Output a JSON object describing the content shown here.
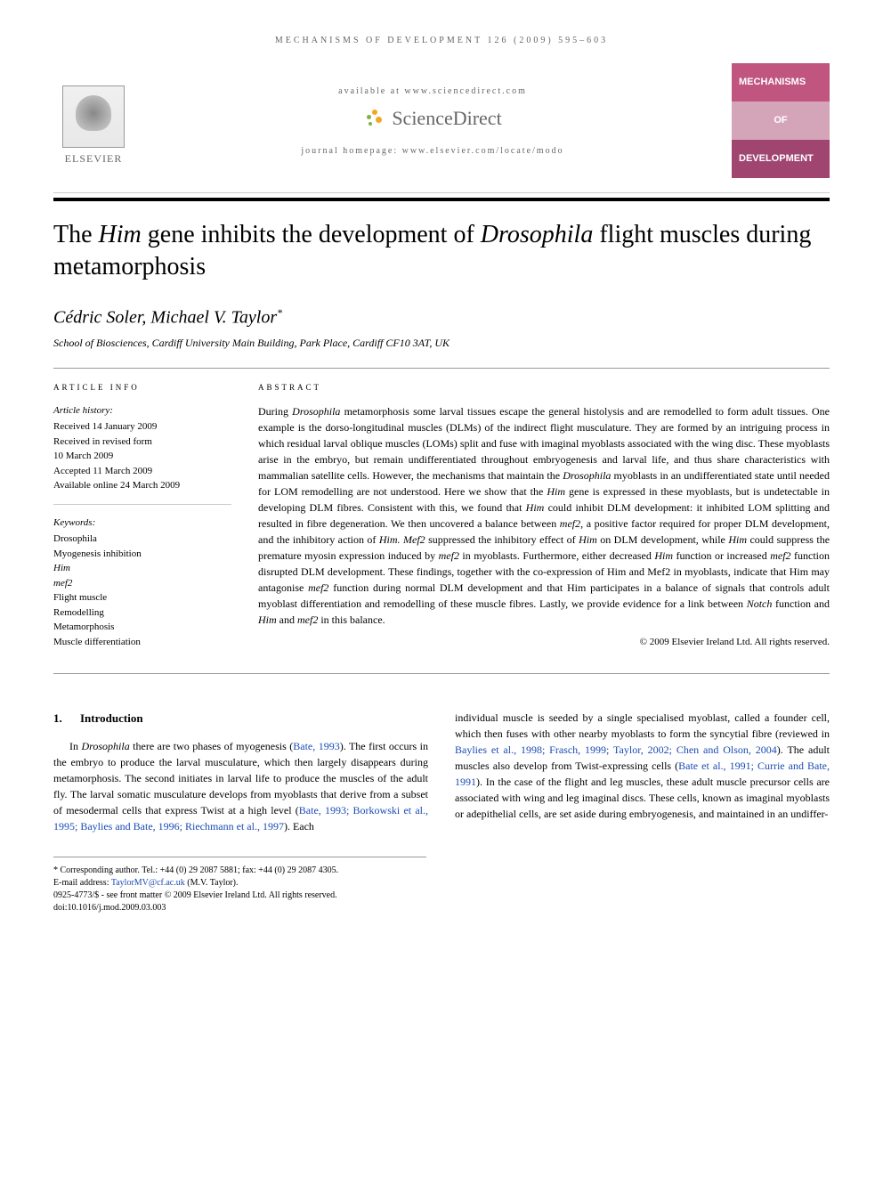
{
  "running_header": "MECHANISMS OF DEVELOPMENT 126 (2009) 595–603",
  "publisher": {
    "name": "ELSEVIER",
    "available_text": "available at www.sciencedirect.com",
    "sciencedirect_text": "ScienceDirect",
    "homepage_text": "journal homepage: www.elsevier.com/locate/modo",
    "sd_colors": {
      "orange": "#f5a623",
      "green": "#7cb342"
    }
  },
  "journal_logo": {
    "line1": "MECHANISMS",
    "line2": "OF",
    "line3": "DEVELOPMENT",
    "colors": {
      "bar1": "#c05580",
      "bar2": "#d4a5b8",
      "bar3": "#a04570"
    }
  },
  "title": {
    "pre": "The ",
    "him": "Him",
    "mid": " gene inhibits the development of ",
    "drosophila": "Drosophila",
    "post": " flight muscles during metamorphosis"
  },
  "authors": "Cédric Soler, Michael V. Taylor",
  "corresponding_mark": "*",
  "affiliation": "School of Biosciences, Cardiff University Main Building, Park Place, Cardiff CF10 3AT, UK",
  "article_info": {
    "heading": "ARTICLE INFO",
    "history_label": "Article history:",
    "history": [
      "Received 14 January 2009",
      "Received in revised form",
      "10 March 2009",
      "Accepted 11 March 2009",
      "Available online 24 March 2009"
    ],
    "keywords_label": "Keywords:",
    "keywords": [
      "Drosophila",
      "Myogenesis inhibition",
      "Him",
      "mef2",
      "Flight muscle",
      "Remodelling",
      "Metamorphosis",
      "Muscle differentiation"
    ]
  },
  "abstract": {
    "heading": "ABSTRACT",
    "text_parts": [
      {
        "t": "During ",
        "i": false
      },
      {
        "t": "Drosophila",
        "i": true
      },
      {
        "t": " metamorphosis some larval tissues escape the general histolysis and are remodelled to form adult tissues. One example is the dorso-longitudinal muscles (DLMs) of the indirect flight musculature. They are formed by an intriguing process in which residual larval oblique muscles (LOMs) split and fuse with imaginal myoblasts associated with the wing disc. These myoblasts arise in the embryo, but remain undifferentiated throughout embryogenesis and larval life, and thus share characteristics with mammalian satellite cells. However, the mechanisms that maintain the ",
        "i": false
      },
      {
        "t": "Drosophila",
        "i": true
      },
      {
        "t": " myoblasts in an undifferentiated state until needed for LOM remodelling are not understood. Here we show that the ",
        "i": false
      },
      {
        "t": "Him",
        "i": true
      },
      {
        "t": " gene is expressed in these myoblasts, but is undetectable in developing DLM fibres. Consistent with this, we found that ",
        "i": false
      },
      {
        "t": "Him",
        "i": true
      },
      {
        "t": " could inhibit DLM development: it inhibited LOM splitting and resulted in fibre degeneration. We then uncovered a balance between ",
        "i": false
      },
      {
        "t": "mef2",
        "i": true
      },
      {
        "t": ", a positive factor required for proper DLM development, and the inhibitory action of ",
        "i": false
      },
      {
        "t": "Him. Mef2",
        "i": true
      },
      {
        "t": " suppressed the inhibitory effect of ",
        "i": false
      },
      {
        "t": "Him",
        "i": true
      },
      {
        "t": " on DLM development, while ",
        "i": false
      },
      {
        "t": "Him",
        "i": true
      },
      {
        "t": " could suppress the premature myosin expression induced by ",
        "i": false
      },
      {
        "t": "mef2",
        "i": true
      },
      {
        "t": " in myoblasts. Furthermore, either decreased ",
        "i": false
      },
      {
        "t": "Him",
        "i": true
      },
      {
        "t": " function or increased ",
        "i": false
      },
      {
        "t": "mef2",
        "i": true
      },
      {
        "t": " function disrupted DLM development. These findings, together with the co-expression of Him and Mef2 in myoblasts, indicate that Him may antagonise ",
        "i": false
      },
      {
        "t": "mef2",
        "i": true
      },
      {
        "t": " function during normal DLM development and that Him participates in a balance of signals that controls adult myoblast differentiation and remodelling of these muscle fibres. Lastly, we provide evidence for a link between ",
        "i": false
      },
      {
        "t": "Notch",
        "i": true
      },
      {
        "t": " function and ",
        "i": false
      },
      {
        "t": "Him",
        "i": true
      },
      {
        "t": " and ",
        "i": false
      },
      {
        "t": "mef2",
        "i": true
      },
      {
        "t": " in this balance.",
        "i": false
      }
    ],
    "copyright": "© 2009 Elsevier Ireland Ltd. All rights reserved."
  },
  "body": {
    "section_number": "1.",
    "section_title": "Introduction",
    "col1_parts": [
      {
        "t": "In ",
        "i": false
      },
      {
        "t": "Drosophila",
        "i": true
      },
      {
        "t": " there are two phases of myogenesis (",
        "i": false
      },
      {
        "t": "Bate, 1993",
        "cite": true
      },
      {
        "t": "). The first occurs in the embryo to produce the larval musculature, which then largely disappears during metamorphosis. The second initiates in larval life to produce the muscles of the adult fly. The larval somatic musculature develops from myoblasts that derive from a subset of mesodermal cells that express Twist at a high level (",
        "i": false
      },
      {
        "t": "Bate, 1993; Borkowski et al., 1995; Baylies and Bate, 1996; Riechmann et al., 1997",
        "cite": true
      },
      {
        "t": "). Each",
        "i": false
      }
    ],
    "col2_parts": [
      {
        "t": "individual muscle is seeded by a single specialised myoblast, called a founder cell, which then fuses with other nearby myoblasts to form the syncytial fibre (reviewed in ",
        "i": false
      },
      {
        "t": "Baylies et al., 1998; Frasch, 1999; Taylor, 2002; Chen and Olson, 2004",
        "cite": true
      },
      {
        "t": "). The adult muscles also develop from Twist-expressing cells (",
        "i": false
      },
      {
        "t": "Bate et al., 1991; Currie and Bate, 1991",
        "cite": true
      },
      {
        "t": "). In the case of the flight and leg muscles, these adult muscle precursor cells are associated with wing and leg imaginal discs. These cells, known as imaginal myoblasts or adepithelial cells, are set aside during embryogenesis, and maintained in an undiffer-",
        "i": false
      }
    ]
  },
  "footnotes": {
    "corresponding": "* Corresponding author. Tel.: +44 (0) 29 2087 5881; fax: +44 (0) 29 2087 4305.",
    "email_label": "E-mail address: ",
    "email": "TaylorMV@cf.ac.uk",
    "email_suffix": " (M.V. Taylor).",
    "issn": "0925-4773/$ - see front matter © 2009 Elsevier Ireland Ltd. All rights reserved.",
    "doi": "doi:10.1016/j.mod.2009.03.003"
  }
}
